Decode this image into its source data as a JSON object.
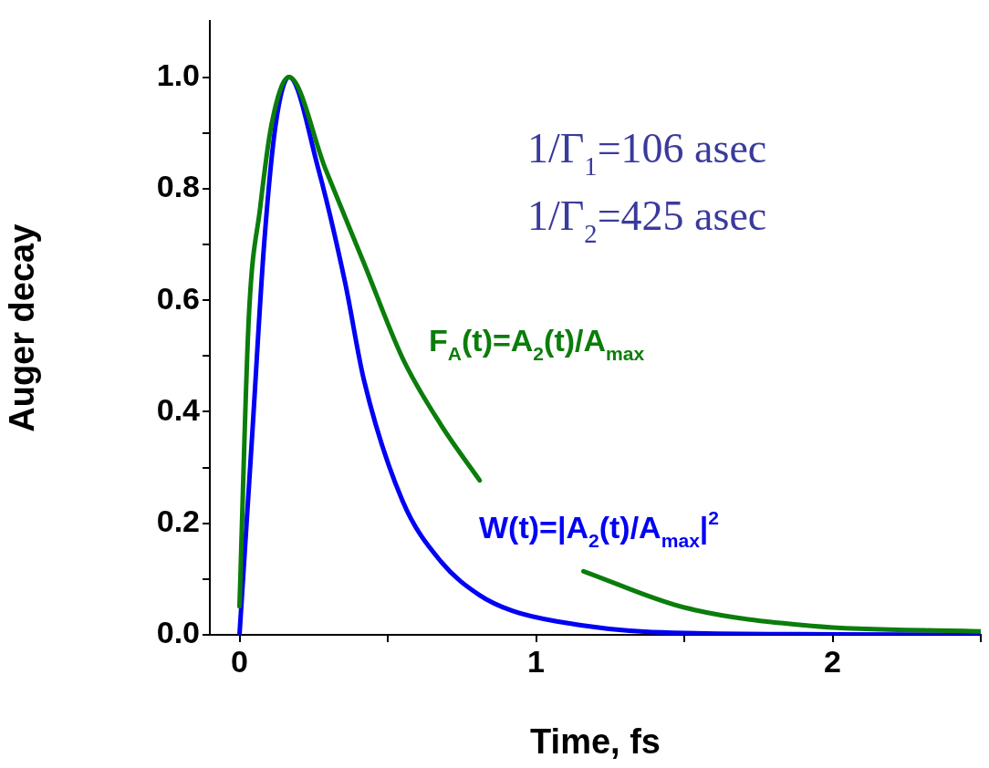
{
  "chart_data": {
    "type": "line",
    "xlabel": "Time, fs",
    "ylabel": "Auger decay",
    "xlim": [
      -0.1,
      2.5
    ],
    "xticks": [
      0,
      {
        "value": 0.5,
        "label": null
      },
      1,
      {
        "value": 1.5,
        "label": null
      },
      2,
      {
        "value": 2.5,
        "label": null
      }
    ],
    "ylim": [
      0,
      1.1
    ],
    "yticks": [
      {
        "value": 0,
        "label": "0.0"
      },
      {
        "value": 0.1,
        "label": null
      },
      {
        "value": 0.2,
        "label": "0.2"
      },
      {
        "value": 0.3,
        "label": null
      },
      {
        "value": 0.4,
        "label": "0.4"
      },
      {
        "value": 0.5,
        "label": null
      },
      {
        "value": 0.6,
        "label": "0.6"
      },
      {
        "value": 0.7,
        "label": null
      },
      {
        "value": 0.8,
        "label": "0.8"
      },
      {
        "value": 0.9,
        "label": null
      },
      {
        "value": 1.0,
        "label": "1.0"
      }
    ],
    "grid": false,
    "legend": false,
    "marker": "none",
    "line_style": "solid",
    "annotations": [
      "1/Γ$_{1}$=106 asec",
      "1/Γ$_{2}$=425 asec"
    ],
    "series": [
      {
        "name": "F$_{A}$(t)=A$_{2}$(t)/A$_{max}$",
        "color": "#0b7d0b",
        "x": [
          0,
          0.031,
          0.07,
          0.108,
          0.167,
          0.29,
          0.42,
          0.55,
          0.68,
          0.81,
          1.0,
          1.16,
          1.5,
          1.93,
          2.5
        ],
        "values": [
          0.051,
          0.564,
          0.767,
          0.915,
          1.0,
          0.835,
          0.666,
          0.496,
          0.376,
          0.277,
          null,
          0.114,
          0.049,
          0.016,
          0.006
        ]
      },
      {
        "name": "W(t)=|A$_{2}$(t)/A$_{max}$|$^{2}$",
        "color": "#0000f5",
        "x": [
          0,
          0.043,
          0.083,
          0.122,
          0.167,
          0.266,
          0.356,
          0.42,
          0.55,
          0.68,
          0.81,
          0.92,
          1.07,
          1.39,
          2.0,
          2.5
        ],
        "values": [
          0,
          0.36,
          0.7,
          0.915,
          1.0,
          0.835,
          0.632,
          0.456,
          0.24,
          0.131,
          0.071,
          0.043,
          0.024,
          0.005,
          0.001,
          0
        ]
      }
    ]
  }
}
